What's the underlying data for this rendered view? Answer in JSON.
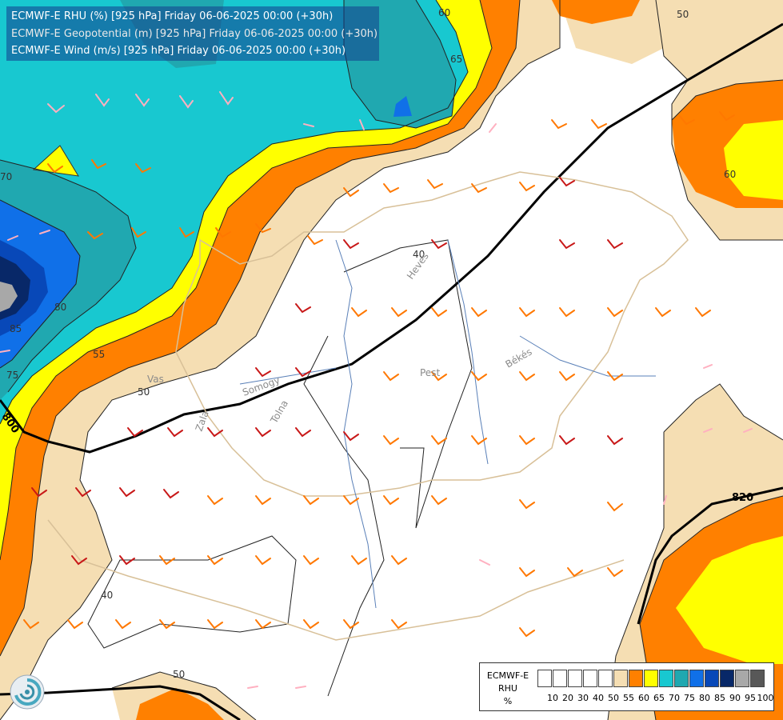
{
  "title_lines": [
    "ECMWF-E RHU (%) [925 hPa] Friday 06-06-2025 00:00 (+30h)",
    "ECMWF-E Geopotential (m) [925 hPa] Friday 06-06-2025 00:00 (+30h)",
    "ECMWF-E Wind (m/s) [925 hPa] Friday 06-06-2025 00:00 (+30h)"
  ],
  "legend": {
    "name_lines": [
      "ECMWF-E",
      "RHU",
      "%"
    ],
    "ticks": [
      "10",
      "20",
      "30",
      "40",
      "50",
      "55",
      "60",
      "65",
      "70",
      "75",
      "80",
      "85",
      "90",
      "95",
      "100"
    ],
    "colors": [
      "#ffffff",
      "#ffffff",
      "#ffffff",
      "#ffffff",
      "#ffffff",
      "#f5deb3",
      "#ff8000",
      "#ffff00",
      "#18c8d0",
      "#20a8b0",
      "#1070e8",
      "#0848b8",
      "#082868",
      "#a8a8a8",
      "#585858"
    ]
  },
  "contour_labels": {
    "rhu": [
      "60",
      "65",
      "60",
      "70",
      "80",
      "85",
      "75",
      "55",
      "50",
      "40",
      "40",
      "50",
      "50"
    ],
    "geopotential": [
      "800",
      "820"
    ]
  },
  "place_labels": [
    "Vas",
    "Somogy",
    "Zala",
    "Tolna",
    "Heves",
    "Pest",
    "Békés"
  ],
  "colors": {
    "rhu_50": "#f5deb3",
    "rhu_55": "#ff8000",
    "rhu_60": "#ffff00",
    "rhu_65": "#18c8d0",
    "rhu_70": "#20a8b0",
    "rhu_80": "#1070e8",
    "rhu_85": "#0848b8",
    "rhu_90": "#082868",
    "rhu_95": "#a8a8a8",
    "border": "#d8c098",
    "river": "#5a80b8"
  }
}
